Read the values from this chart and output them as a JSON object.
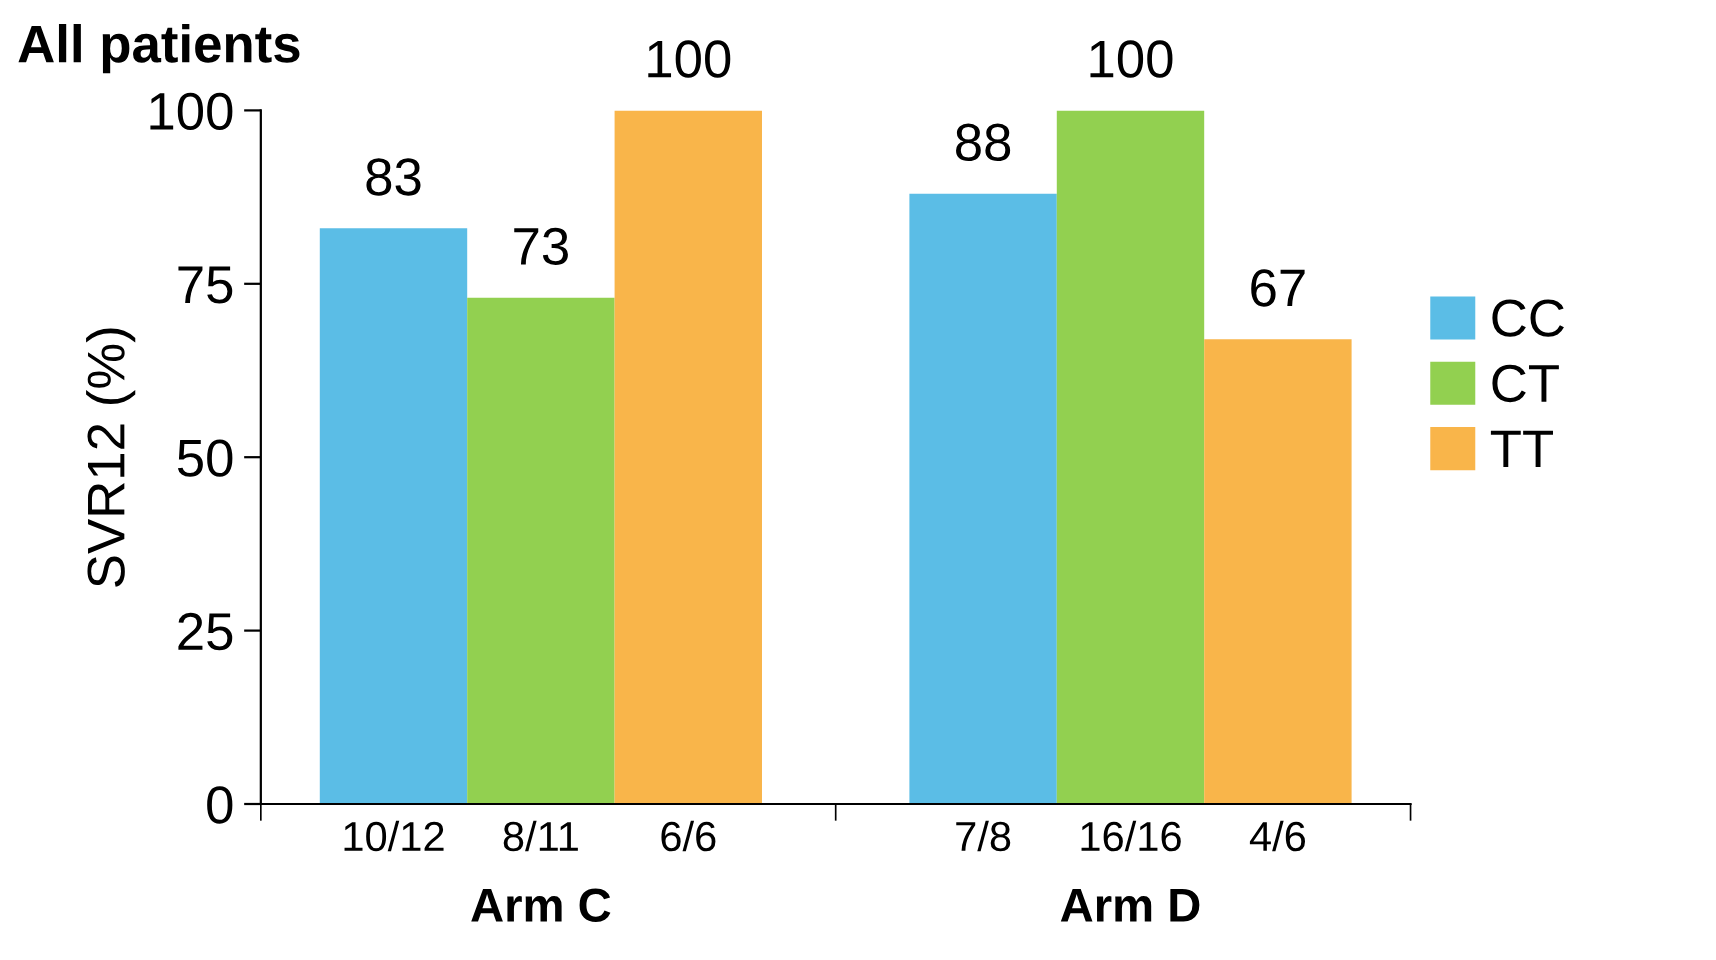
{
  "chart_data": {
    "type": "bar",
    "title": "All patients",
    "ylabel": "SVR12 (%)",
    "categories": [
      "10/12",
      "8/11",
      "6/6",
      null,
      "7/8",
      "16/16",
      "4/6"
    ],
    "series": [
      {
        "name": "CC",
        "color": "#5bbde6",
        "values": [
          83,
          null,
          null,
          null,
          88,
          null,
          null
        ]
      },
      {
        "name": "CT",
        "color": "#92d050",
        "values": [
          null,
          73,
          null,
          null,
          null,
          100,
          null
        ]
      },
      {
        "name": "TT",
        "color": "#f9b54a",
        "values": [
          null,
          null,
          100,
          null,
          null,
          null,
          67
        ]
      }
    ],
    "ylim": [
      0,
      100
    ],
    "yticks": [
      0,
      25,
      50,
      75,
      100
    ],
    "grid": false,
    "legend": "right",
    "data_labels": true,
    "annotations": [
      "Arm C",
      "Arm D"
    ]
  }
}
